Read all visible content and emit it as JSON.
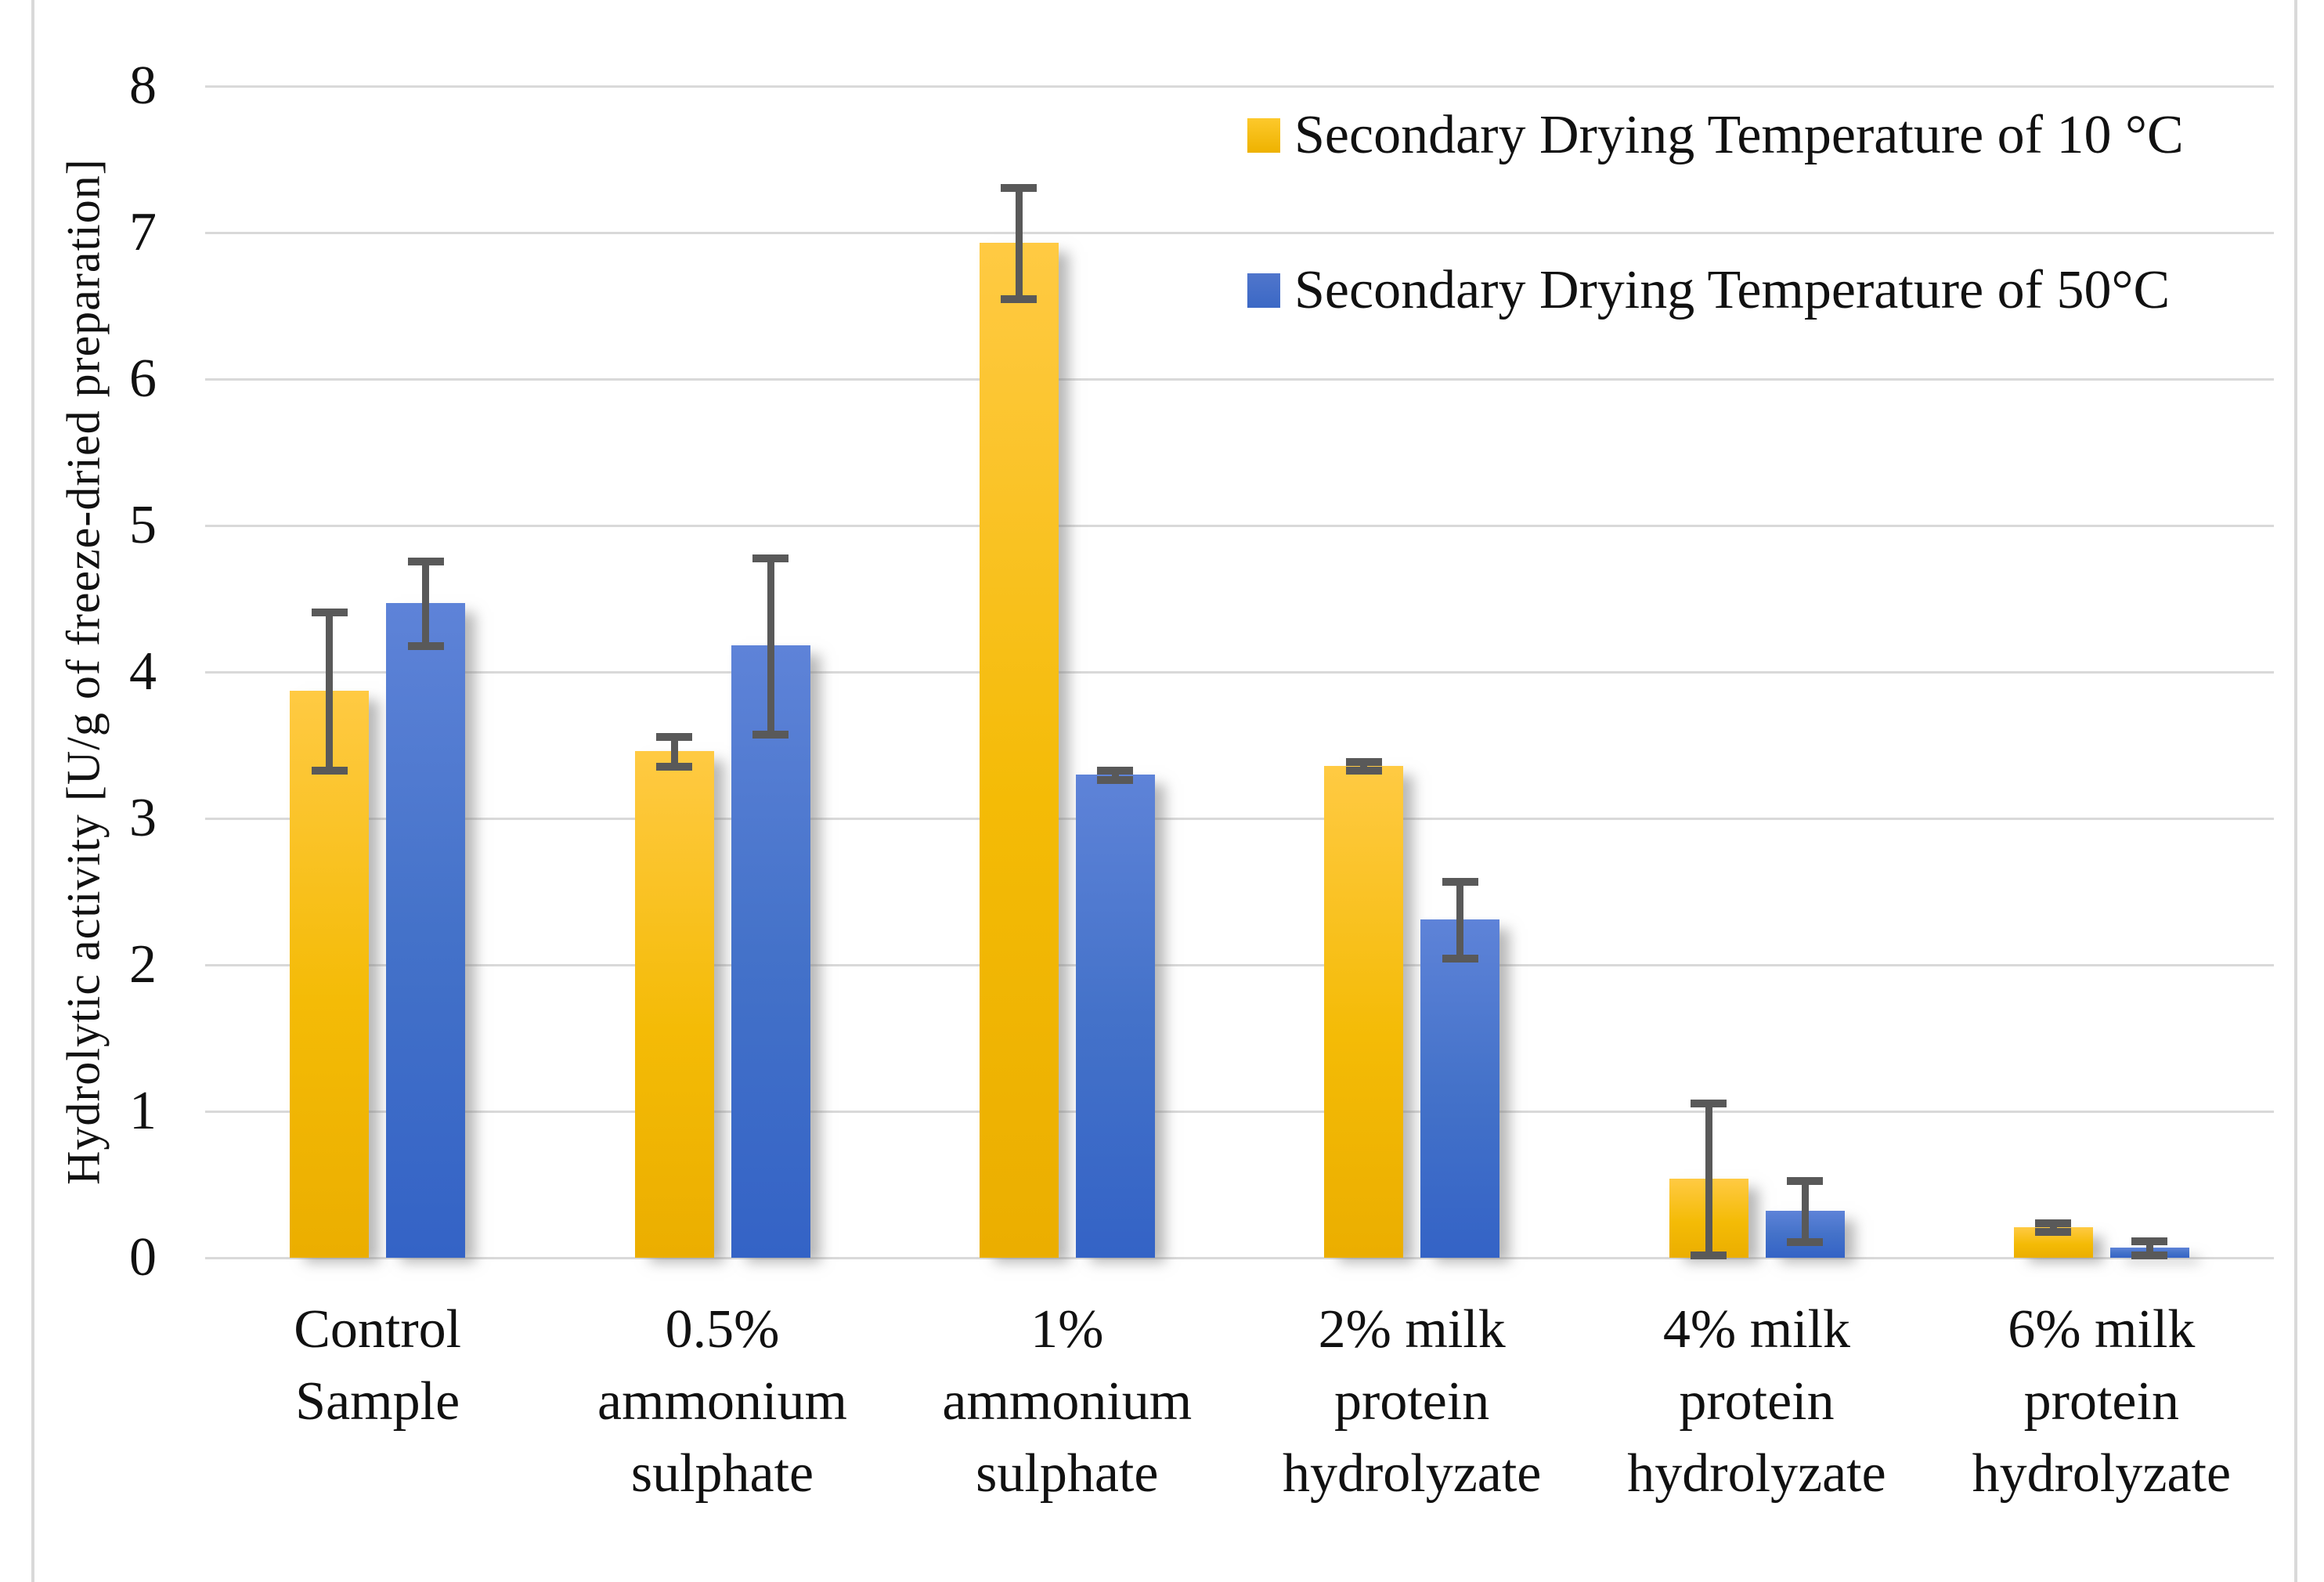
{
  "chart_data": {
    "type": "bar",
    "title": "",
    "xlabel": "",
    "ylabel": "Hydrolytic activity [U/g of freeze-dried preparation]",
    "ylim": [
      0,
      8
    ],
    "yticks": [
      0,
      1,
      2,
      3,
      4,
      5,
      6,
      7,
      8
    ],
    "grid": true,
    "legend_position": "top-right",
    "background_color": "#ffffff",
    "gridline_color": "#d9d9d9",
    "error_bar_color": "#595959",
    "categories": [
      [
        "Control",
        "Sample"
      ],
      [
        "0.5%",
        "ammonium",
        "sulphate"
      ],
      [
        "1%",
        "ammonium",
        "sulphate"
      ],
      [
        "2% milk",
        "protein",
        "hydrolyzate"
      ],
      [
        "4% milk",
        "protein",
        "hydrolyzate"
      ],
      [
        "6% milk",
        "protein",
        "hydrolyzate"
      ]
    ],
    "series": [
      {
        "name": "Secondary Drying Temperature of 10 °C",
        "color": "#FFC010",
        "values": [
          3.87,
          3.46,
          6.93,
          3.36,
          0.54,
          0.21
        ],
        "errors": [
          0.54,
          0.1,
          0.38,
          0.03,
          0.52,
          0.03
        ]
      },
      {
        "name": "Secondary Drying Temperature of 50°C",
        "color": "#4472C4",
        "values": [
          4.47,
          4.18,
          3.3,
          2.31,
          0.32,
          0.07
        ],
        "errors": [
          0.29,
          0.6,
          0.03,
          0.26,
          0.21,
          0.05
        ]
      }
    ]
  }
}
